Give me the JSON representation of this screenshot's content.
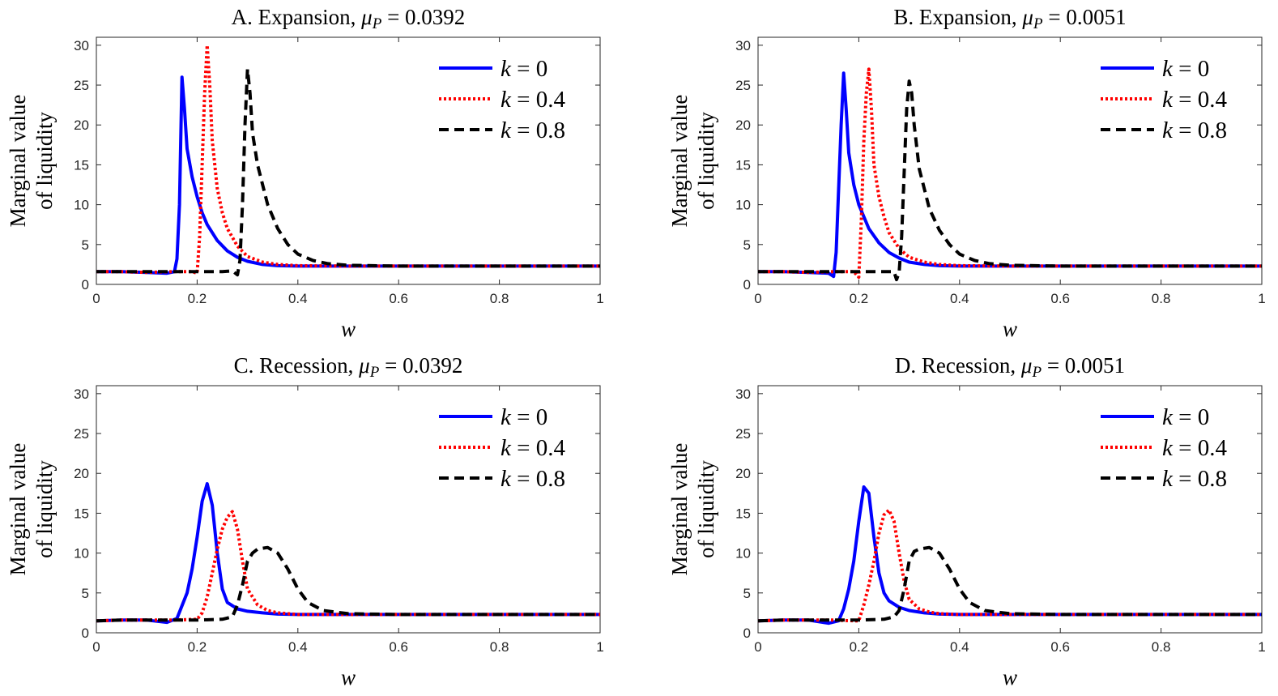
{
  "chart_data": [
    {
      "type": "line",
      "title": "A. Expansion, ",
      "title_math": "μ",
      "title_sub": "P",
      "title_value": " = 0.0392",
      "xlabel": "w",
      "ylabel_line1": "Marginal value",
      "ylabel_line2": "of liquidity",
      "xlim": [
        0,
        1
      ],
      "ylim": [
        0,
        31
      ],
      "xticks": [
        "0",
        "0.2",
        "0.4",
        "0.6",
        "0.8",
        "1"
      ],
      "yticks": [
        "0",
        "5",
        "10",
        "15",
        "20",
        "25",
        "30"
      ],
      "legend_position": "top-right",
      "series": [
        {
          "name_var": "k",
          "name_val": " = 0",
          "color": "#0000ff",
          "style": "solid",
          "x": [
            0,
            0.05,
            0.1,
            0.14,
            0.155,
            0.16,
            0.165,
            0.17,
            0.175,
            0.18,
            0.19,
            0.2,
            0.21,
            0.22,
            0.24,
            0.26,
            0.28,
            0.3,
            0.33,
            0.36,
            0.4,
            0.5,
            0.6,
            0.8,
            1.0
          ],
          "y": [
            1.6,
            1.6,
            1.5,
            1.4,
            1.6,
            3.2,
            10,
            26,
            22,
            17,
            13.5,
            11,
            9,
            7.5,
            5.5,
            4.2,
            3.4,
            2.9,
            2.5,
            2.35,
            2.3,
            2.3,
            2.3,
            2.3,
            2.3
          ]
        },
        {
          "name_var": "k",
          "name_val": " = 0.4",
          "color": "#ff0000",
          "style": "dotted",
          "x": [
            0,
            0.05,
            0.1,
            0.15,
            0.19,
            0.2,
            0.205,
            0.21,
            0.215,
            0.22,
            0.225,
            0.23,
            0.24,
            0.25,
            0.26,
            0.28,
            0.3,
            0.33,
            0.36,
            0.4,
            0.5,
            0.6,
            0.8,
            1.0
          ],
          "y": [
            1.6,
            1.6,
            1.5,
            1.6,
            1.6,
            1.4,
            6,
            15,
            24,
            30,
            25,
            18,
            12,
            9,
            7,
            4.8,
            3.5,
            2.8,
            2.5,
            2.35,
            2.3,
            2.3,
            2.3,
            2.3
          ]
        },
        {
          "name_var": "k",
          "name_val": " = 0.8",
          "color": "#000000",
          "style": "dashed",
          "x": [
            0,
            0.05,
            0.1,
            0.15,
            0.2,
            0.25,
            0.27,
            0.28,
            0.285,
            0.29,
            0.295,
            0.3,
            0.305,
            0.31,
            0.32,
            0.34,
            0.36,
            0.38,
            0.4,
            0.43,
            0.46,
            0.5,
            0.6,
            0.8,
            1.0
          ],
          "y": [
            1.6,
            1.6,
            1.6,
            1.6,
            1.6,
            1.6,
            1.7,
            1.2,
            3,
            10,
            20,
            27,
            24,
            19,
            15,
            10,
            7,
            5,
            3.8,
            3,
            2.6,
            2.4,
            2.3,
            2.3,
            2.3
          ]
        }
      ]
    },
    {
      "type": "line",
      "title": "B. Expansion, ",
      "title_math": "μ",
      "title_sub": "P",
      "title_value": " = 0.0051",
      "xlabel": "w",
      "ylabel_line1": "Marginal value",
      "ylabel_line2": "of liquidity",
      "xlim": [
        0,
        1
      ],
      "ylim": [
        0,
        31
      ],
      "xticks": [
        "0",
        "0.2",
        "0.4",
        "0.6",
        "0.8",
        "1"
      ],
      "yticks": [
        "0",
        "5",
        "10",
        "15",
        "20",
        "25",
        "30"
      ],
      "legend_position": "top-right",
      "series": [
        {
          "name_var": "k",
          "name_val": " = 0",
          "color": "#0000ff",
          "style": "solid",
          "x": [
            0,
            0.05,
            0.1,
            0.14,
            0.15,
            0.155,
            0.16,
            0.165,
            0.17,
            0.175,
            0.18,
            0.19,
            0.2,
            0.21,
            0.22,
            0.24,
            0.26,
            0.28,
            0.3,
            0.33,
            0.36,
            0.4,
            0.5,
            0.6,
            0.8,
            1.0
          ],
          "y": [
            1.6,
            1.6,
            1.5,
            1.4,
            1.0,
            4,
            12,
            20,
            26.5,
            22,
            16.5,
            12.5,
            10,
            8.5,
            7,
            5.2,
            4,
            3.3,
            2.8,
            2.5,
            2.35,
            2.3,
            2.3,
            2.3,
            2.3,
            2.3
          ]
        },
        {
          "name_var": "k",
          "name_val": " = 0.4",
          "color": "#ff0000",
          "style": "dotted",
          "x": [
            0,
            0.05,
            0.1,
            0.15,
            0.19,
            0.2,
            0.205,
            0.21,
            0.215,
            0.22,
            0.225,
            0.23,
            0.24,
            0.25,
            0.26,
            0.28,
            0.3,
            0.33,
            0.36,
            0.4,
            0.5,
            0.6,
            0.8,
            1.0
          ],
          "y": [
            1.6,
            1.6,
            1.5,
            1.6,
            1.6,
            0.9,
            8,
            18,
            24,
            27,
            22,
            15,
            11,
            8.5,
            6.5,
            4.5,
            3.4,
            2.8,
            2.5,
            2.35,
            2.3,
            2.3,
            2.3,
            2.3
          ]
        },
        {
          "name_var": "k",
          "name_val": " = 0.8",
          "color": "#000000",
          "style": "dashed",
          "x": [
            0,
            0.05,
            0.1,
            0.15,
            0.2,
            0.25,
            0.27,
            0.275,
            0.28,
            0.285,
            0.29,
            0.295,
            0.3,
            0.305,
            0.31,
            0.32,
            0.34,
            0.36,
            0.38,
            0.4,
            0.43,
            0.46,
            0.5,
            0.6,
            0.8,
            1.0
          ],
          "y": [
            1.6,
            1.6,
            1.6,
            1.6,
            1.6,
            1.6,
            1.6,
            0.6,
            1.5,
            6,
            14,
            22,
            25.5,
            24,
            20,
            14.5,
            9.5,
            6.8,
            5,
            3.8,
            3,
            2.6,
            2.4,
            2.3,
            2.3,
            2.3
          ]
        }
      ]
    },
    {
      "type": "line",
      "title": "C. Recession, ",
      "title_math": "μ",
      "title_sub": "P",
      "title_value": " = 0.0392",
      "xlabel": "w",
      "ylabel_line1": "Marginal value",
      "ylabel_line2": "of liquidity",
      "xlim": [
        0,
        1
      ],
      "ylim": [
        0,
        31
      ],
      "xticks": [
        "0",
        "0.2",
        "0.4",
        "0.6",
        "0.8",
        "1"
      ],
      "yticks": [
        "0",
        "5",
        "10",
        "15",
        "20",
        "25",
        "30"
      ],
      "legend_position": "top-right",
      "series": [
        {
          "name_var": "k",
          "name_val": " = 0",
          "color": "#0000ff",
          "style": "solid",
          "x": [
            0,
            0.05,
            0.1,
            0.14,
            0.16,
            0.18,
            0.19,
            0.2,
            0.21,
            0.22,
            0.23,
            0.24,
            0.25,
            0.26,
            0.28,
            0.3,
            0.33,
            0.36,
            0.4,
            0.5,
            0.6,
            0.8,
            1.0
          ],
          "y": [
            1.5,
            1.6,
            1.6,
            1.3,
            1.8,
            5,
            8,
            12,
            16.5,
            18.7,
            16,
            10,
            5.5,
            3.8,
            3,
            2.7,
            2.5,
            2.35,
            2.3,
            2.3,
            2.3,
            2.3,
            2.3
          ]
        },
        {
          "name_var": "k",
          "name_val": " = 0.4",
          "color": "#ff0000",
          "style": "dotted",
          "x": [
            0,
            0.05,
            0.1,
            0.15,
            0.2,
            0.21,
            0.22,
            0.23,
            0.24,
            0.25,
            0.26,
            0.27,
            0.28,
            0.29,
            0.3,
            0.32,
            0.34,
            0.36,
            0.4,
            0.5,
            0.6,
            0.8,
            1.0
          ],
          "y": [
            1.5,
            1.6,
            1.6,
            1.6,
            1.7,
            2.5,
            4.5,
            7.5,
            10.5,
            13,
            14.5,
            15.2,
            13,
            9,
            5.5,
            3.5,
            2.8,
            2.5,
            2.3,
            2.3,
            2.3,
            2.3,
            2.3
          ]
        },
        {
          "name_var": "k",
          "name_val": " = 0.8",
          "color": "#000000",
          "style": "dashed",
          "x": [
            0,
            0.05,
            0.1,
            0.15,
            0.2,
            0.25,
            0.27,
            0.28,
            0.29,
            0.3,
            0.31,
            0.32,
            0.34,
            0.36,
            0.38,
            0.4,
            0.42,
            0.45,
            0.5,
            0.6,
            0.8,
            1.0
          ],
          "y": [
            1.5,
            1.6,
            1.6,
            1.6,
            1.6,
            1.7,
            2,
            3.5,
            6,
            9,
            10,
            10.5,
            10.7,
            10,
            8,
            5.5,
            3.8,
            2.8,
            2.4,
            2.3,
            2.3,
            2.3
          ]
        }
      ]
    },
    {
      "type": "line",
      "title": "D. Recession, ",
      "title_math": "μ",
      "title_sub": "P",
      "title_value": " = 0.0051",
      "xlabel": "w",
      "ylabel_line1": "Marginal value",
      "ylabel_line2": "of liquidity",
      "xlim": [
        0,
        1
      ],
      "ylim": [
        0,
        31
      ],
      "xticks": [
        "0",
        "0.2",
        "0.4",
        "0.6",
        "0.8",
        "1"
      ],
      "yticks": [
        "0",
        "5",
        "10",
        "15",
        "20",
        "25",
        "30"
      ],
      "legend_position": "top-right",
      "series": [
        {
          "name_var": "k",
          "name_val": " = 0",
          "color": "#0000ff",
          "style": "solid",
          "x": [
            0,
            0.05,
            0.1,
            0.14,
            0.16,
            0.17,
            0.18,
            0.19,
            0.2,
            0.21,
            0.22,
            0.23,
            0.24,
            0.25,
            0.26,
            0.28,
            0.3,
            0.33,
            0.36,
            0.4,
            0.5,
            0.6,
            0.8,
            1.0
          ],
          "y": [
            1.5,
            1.6,
            1.6,
            1.2,
            1.5,
            3,
            5.5,
            9,
            14,
            18.3,
            17.5,
            12,
            7.5,
            5,
            4,
            3.2,
            2.8,
            2.5,
            2.35,
            2.3,
            2.3,
            2.3,
            2.3,
            2.3
          ]
        },
        {
          "name_var": "k",
          "name_val": " = 0.4",
          "color": "#ff0000",
          "style": "dotted",
          "x": [
            0,
            0.05,
            0.1,
            0.15,
            0.19,
            0.2,
            0.21,
            0.22,
            0.23,
            0.24,
            0.25,
            0.26,
            0.27,
            0.28,
            0.29,
            0.3,
            0.32,
            0.34,
            0.36,
            0.4,
            0.5,
            0.6,
            0.8,
            1.0
          ],
          "y": [
            1.5,
            1.6,
            1.6,
            1.6,
            1.5,
            1.5,
            3.5,
            6,
            9,
            12.5,
            14.8,
            15.4,
            14,
            10,
            6.5,
            4.2,
            3,
            2.6,
            2.4,
            2.3,
            2.3,
            2.3,
            2.3,
            2.3
          ]
        },
        {
          "name_var": "k",
          "name_val": " = 0.8",
          "color": "#000000",
          "style": "dashed",
          "x": [
            0,
            0.05,
            0.1,
            0.15,
            0.2,
            0.25,
            0.27,
            0.28,
            0.29,
            0.3,
            0.31,
            0.32,
            0.34,
            0.36,
            0.38,
            0.4,
            0.42,
            0.45,
            0.5,
            0.6,
            0.8,
            1.0
          ],
          "y": [
            1.5,
            1.6,
            1.6,
            1.6,
            1.6,
            1.7,
            2,
            2.8,
            5.5,
            9,
            10.2,
            10.5,
            10.7,
            10,
            8,
            5.5,
            3.8,
            2.8,
            2.4,
            2.3,
            2.3,
            2.3
          ]
        }
      ]
    }
  ]
}
